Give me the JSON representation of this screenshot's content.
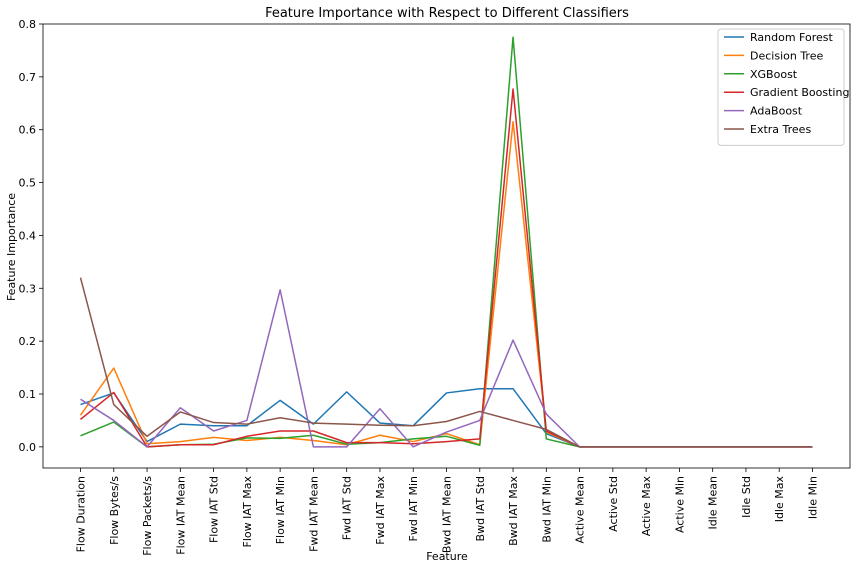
{
  "chart_data": {
    "type": "line",
    "title": "Feature Importance with Respect to Different Classifiers",
    "xlabel": "Feature",
    "ylabel": "Feature Importance",
    "ylim": [
      -0.04,
      0.8
    ],
    "yticks": [
      0.0,
      0.1,
      0.2,
      0.3,
      0.4,
      0.5,
      0.6,
      0.7,
      0.8
    ],
    "ytick_labels": [
      "0.0",
      "0.1",
      "0.2",
      "0.3",
      "0.4",
      "0.5",
      "0.6",
      "0.7",
      "0.8"
    ],
    "grid": false,
    "legend_position": "top-right",
    "categories": [
      "Flow Duration",
      "Flow Bytes/s",
      "Flow Packets/s",
      "Flow IAT Mean",
      "Flow IAT Std",
      "Flow IAT Max",
      "Flow IAT Min",
      "Fwd IAT Mean",
      "Fwd IAT Std",
      "Fwd IAT Max",
      "Fwd IAT Min",
      "Bwd IAT Mean",
      "Bwd IAT Std",
      "Bwd IAT Max",
      "Bwd IAT Min",
      "Active Mean",
      "Active Std",
      "Active Max",
      "Active Min",
      "Idle Mean",
      "Idle Std",
      "Idle Max",
      "Idle Min"
    ],
    "series": [
      {
        "name": "Random Forest",
        "color": "#1f77b4",
        "values": [
          0.08,
          0.102,
          0.01,
          0.043,
          0.04,
          0.04,
          0.088,
          0.043,
          0.104,
          0.045,
          0.04,
          0.102,
          0.11,
          0.11,
          0.025,
          0.0,
          0.0,
          0.0,
          0.0,
          0.0,
          0.0,
          0.0,
          0.0
        ]
      },
      {
        "name": "Decision Tree",
        "color": "#ff7f0e",
        "values": [
          0.06,
          0.149,
          0.006,
          0.01,
          0.018,
          0.012,
          0.018,
          0.012,
          0.004,
          0.022,
          0.01,
          0.025,
          0.004,
          0.615,
          0.028,
          0.0,
          0.0,
          0.0,
          0.0,
          0.0,
          0.0,
          0.0,
          0.0
        ]
      },
      {
        "name": "XGBoost",
        "color": "#2ca02c",
        "values": [
          0.021,
          0.047,
          0.0,
          0.004,
          0.005,
          0.017,
          0.016,
          0.022,
          0.005,
          0.008,
          0.015,
          0.02,
          0.003,
          0.775,
          0.015,
          0.0,
          0.0,
          0.0,
          0.0,
          0.0,
          0.0,
          0.0,
          0.0
        ]
      },
      {
        "name": "Gradient Boosting",
        "color": "#d62728",
        "values": [
          0.052,
          0.103,
          0.0,
          0.004,
          0.004,
          0.02,
          0.03,
          0.03,
          0.008,
          0.008,
          0.006,
          0.01,
          0.015,
          0.677,
          0.03,
          0.0,
          0.0,
          0.0,
          0.0,
          0.0,
          0.0,
          0.0,
          0.0
        ]
      },
      {
        "name": "AdaBoost",
        "color": "#9467bd",
        "values": [
          0.09,
          0.05,
          0.0,
          0.074,
          0.03,
          0.05,
          0.297,
          0.0,
          0.0,
          0.072,
          0.0,
          0.028,
          0.05,
          0.202,
          0.062,
          0.0,
          0.0,
          0.0,
          0.0,
          0.0,
          0.0,
          0.0,
          0.0
        ]
      },
      {
        "name": "Extra Trees",
        "color": "#8c564b",
        "values": [
          0.32,
          0.08,
          0.02,
          0.066,
          0.046,
          0.043,
          0.055,
          0.045,
          0.043,
          0.041,
          0.04,
          0.048,
          0.067,
          0.05,
          0.033,
          0.0,
          0.0,
          0.0,
          0.0,
          0.0,
          0.0,
          0.0,
          0.0
        ]
      }
    ]
  }
}
